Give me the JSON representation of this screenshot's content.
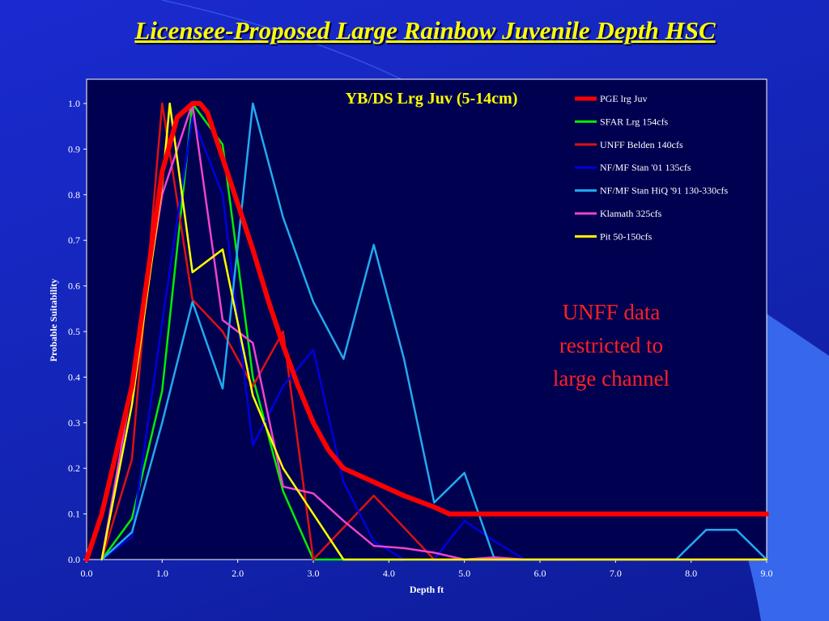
{
  "slide": {
    "title": "Licensee-Proposed Large Rainbow Juvenile Depth HSC"
  },
  "note": {
    "lines": [
      "UNFF data",
      "restricted to",
      "large channel"
    ],
    "color": "#ff2020"
  },
  "colors": {
    "background": "#1426b8",
    "plot_area": "#000050",
    "title": "#ffff00",
    "axis_text": "#ffffff"
  },
  "chart_data": {
    "type": "line",
    "title": "YB/DS Lrg Juv (5-14cm)",
    "xlabel": "Depth ft",
    "ylabel": "Probable Suitability",
    "xlim": [
      0,
      9
    ],
    "ylim": [
      0,
      1
    ],
    "xticks": [
      "0.0",
      "1.0",
      "2.0",
      "3.0",
      "4.0",
      "5.0",
      "6.0",
      "7.0",
      "8.0",
      "9.0"
    ],
    "yticks": [
      "0.0",
      "0.1",
      "0.2",
      "0.3",
      "0.4",
      "0.5",
      "0.6",
      "0.7",
      "0.8",
      "0.9",
      "1.0"
    ],
    "grid": false,
    "legend_position": "top-right",
    "series": [
      {
        "name": "PGE lrg Juv",
        "color": "#ff0000",
        "points": [
          [
            0,
            0
          ],
          [
            0.2,
            0.1
          ],
          [
            0.6,
            0.38
          ],
          [
            1.0,
            0.85
          ],
          [
            1.2,
            0.97
          ],
          [
            1.4,
            1.0
          ],
          [
            1.5,
            1.0
          ],
          [
            1.6,
            0.98
          ],
          [
            1.8,
            0.88
          ],
          [
            2.0,
            0.78
          ],
          [
            2.2,
            0.68
          ],
          [
            2.4,
            0.57
          ],
          [
            2.6,
            0.47
          ],
          [
            2.8,
            0.38
          ],
          [
            3.0,
            0.3
          ],
          [
            3.2,
            0.24
          ],
          [
            3.4,
            0.2
          ],
          [
            3.8,
            0.17
          ],
          [
            4.2,
            0.14
          ],
          [
            4.6,
            0.115
          ],
          [
            4.8,
            0.1
          ],
          [
            5.0,
            0.1
          ],
          [
            9.0,
            0.1
          ]
        ]
      },
      {
        "name": "SFAR Lrg  154cfs",
        "color": "#00ee00",
        "points": [
          [
            0.2,
            0
          ],
          [
            0.6,
            0.09
          ],
          [
            1.0,
            0.37
          ],
          [
            1.4,
            1.0
          ],
          [
            1.8,
            0.91
          ],
          [
            2.2,
            0.4
          ],
          [
            2.6,
            0.15
          ],
          [
            3.0,
            0
          ],
          [
            3.2,
            0
          ],
          [
            4.0,
            0
          ],
          [
            9.0,
            0
          ]
        ]
      },
      {
        "name": "UNFF Belden 140cfs",
        "color": "#dd1111",
        "points": [
          [
            0.2,
            0
          ],
          [
            0.6,
            0.22
          ],
          [
            1.0,
            1.0
          ],
          [
            1.4,
            0.57
          ],
          [
            1.8,
            0.5
          ],
          [
            2.2,
            0.38
          ],
          [
            2.6,
            0.5
          ],
          [
            3.0,
            0
          ],
          [
            3.4,
            0.07
          ],
          [
            3.8,
            0.14
          ],
          [
            4.2,
            0.07
          ],
          [
            4.6,
            0
          ],
          [
            9.0,
            0
          ]
        ]
      },
      {
        "name": "NF/MF Stan '01 135cfs",
        "color": "#0000dd",
        "points": [
          [
            0.2,
            0
          ],
          [
            0.6,
            0.05
          ],
          [
            1.0,
            0.52
          ],
          [
            1.4,
            0.97
          ],
          [
            1.8,
            0.8
          ],
          [
            2.2,
            0.25
          ],
          [
            2.6,
            0.38
          ],
          [
            3.0,
            0.46
          ],
          [
            3.4,
            0.17
          ],
          [
            3.8,
            0.04
          ],
          [
            4.2,
            0
          ],
          [
            4.6,
            0
          ],
          [
            5.0,
            0.085
          ],
          [
            5.4,
            0.04
          ],
          [
            5.8,
            0
          ],
          [
            9.0,
            0
          ]
        ]
      },
      {
        "name": "NF/MF Stan HiQ '91 130-330cfs",
        "color": "#22aaee",
        "points": [
          [
            0.2,
            0
          ],
          [
            0.6,
            0.06
          ],
          [
            1.0,
            0.3
          ],
          [
            1.4,
            0.565
          ],
          [
            1.8,
            0.375
          ],
          [
            2.2,
            1.0
          ],
          [
            2.6,
            0.75
          ],
          [
            3.0,
            0.565
          ],
          [
            3.4,
            0.44
          ],
          [
            3.8,
            0.69
          ],
          [
            4.2,
            0.44
          ],
          [
            4.6,
            0.125
          ],
          [
            5.0,
            0.19
          ],
          [
            5.4,
            0
          ],
          [
            5.8,
            0
          ],
          [
            7.8,
            0
          ],
          [
            8.2,
            0.065
          ],
          [
            8.6,
            0.065
          ],
          [
            9.0,
            0
          ]
        ]
      },
      {
        "name": "Klamath 325cfs",
        "color": "#ee44cc",
        "points": [
          [
            0.2,
            0
          ],
          [
            0.6,
            0.38
          ],
          [
            1.0,
            0.8
          ],
          [
            1.4,
            1.0
          ],
          [
            1.8,
            0.525
          ],
          [
            2.2,
            0.475
          ],
          [
            2.6,
            0.16
          ],
          [
            3.0,
            0.145
          ],
          [
            3.4,
            0.085
          ],
          [
            3.8,
            0.03
          ],
          [
            4.2,
            0.025
          ],
          [
            4.6,
            0.015
          ],
          [
            5.0,
            0
          ],
          [
            5.4,
            0.005
          ],
          [
            5.8,
            0
          ],
          [
            9.0,
            0
          ]
        ]
      },
      {
        "name": "Pit 50-150cfs",
        "color": "#ffff00",
        "points": [
          [
            0.2,
            0
          ],
          [
            0.6,
            0.34
          ],
          [
            1.0,
            0.82
          ],
          [
            1.1,
            1.0
          ],
          [
            1.4,
            0.63
          ],
          [
            1.8,
            0.68
          ],
          [
            2.2,
            0.36
          ],
          [
            2.6,
            0.2
          ],
          [
            3.0,
            0.1
          ],
          [
            3.4,
            0.0
          ],
          [
            4.0,
            0
          ],
          [
            9.0,
            0
          ]
        ]
      }
    ]
  }
}
